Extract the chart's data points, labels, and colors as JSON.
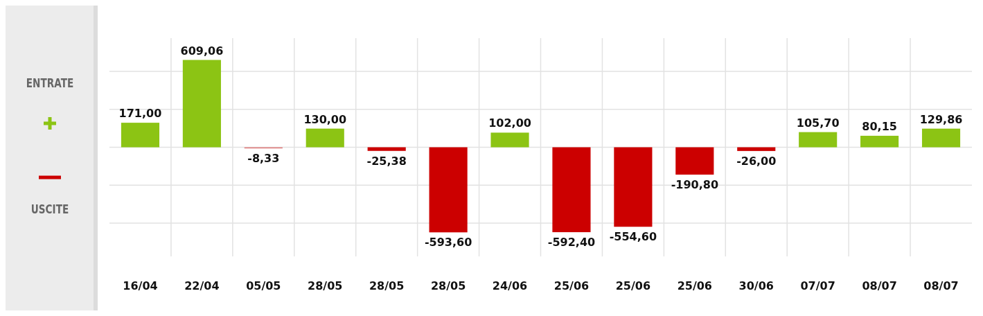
{
  "chart_data": {
    "type": "bar",
    "grid": true,
    "annotations": [
      "ENTRATE",
      "USCITE"
    ],
    "categories": [
      "16/04",
      "22/04",
      "05/05",
      "28/05",
      "28/05",
      "28/05",
      "24/06",
      "25/06",
      "25/06",
      "25/06",
      "30/06",
      "07/07",
      "08/07",
      "08/07"
    ],
    "values": [
      171.0,
      609.06,
      -8.33,
      130.0,
      -25.38,
      -593.6,
      102.0,
      -592.4,
      -554.6,
      -190.8,
      -26.0,
      105.7,
      80.15,
      129.86
    ],
    "colors": [
      "#8cc414",
      "#8cc414",
      "#e08080",
      "#8cc414",
      "#cc0000",
      "#cc0000",
      "#8cc414",
      "#cc0000",
      "#cc0000",
      "#cc0000",
      "#cc0000",
      "#8cc414",
      "#8cc414",
      "#8cc414"
    ],
    "value_labels": [
      "171,00",
      "609,06",
      "-8,33",
      "130,00",
      "-25,38",
      "-593,60",
      "102,00",
      "-592,40",
      "-554,60",
      "-190,80",
      "-26,00",
      "105,70",
      "80,15",
      "129,86"
    ]
  }
}
